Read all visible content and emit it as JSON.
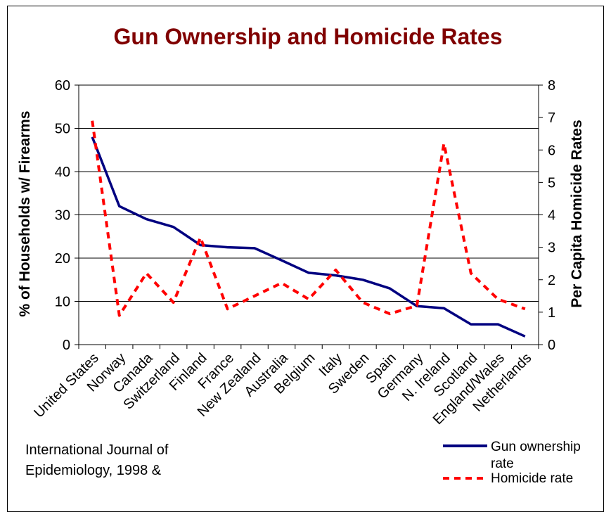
{
  "chart_data": {
    "type": "line",
    "title": "Gun Ownership and Homicide Rates",
    "categories": [
      "United States",
      "Norway",
      "Canada",
      "Switzerland",
      "Finland",
      "France",
      "New Zealand",
      "Australia",
      "Belgium",
      "Italy",
      "Sweden",
      "Spain",
      "Germany",
      "N. Ireland",
      "Scotland",
      "England/Wales",
      "Netherlands"
    ],
    "ylabel": "% of Households w/ Firearms",
    "y2label": "Per Capita Homicide Rates",
    "ylim": [
      0,
      60
    ],
    "y2lim": [
      0,
      8
    ],
    "yticks": [
      0,
      10,
      20,
      30,
      40,
      50,
      60
    ],
    "y2ticks": [
      0,
      1,
      2,
      3,
      4,
      5,
      6,
      7,
      8
    ],
    "grid": "horizontal",
    "legend_position": "bottom-right",
    "series": [
      {
        "name": "Gun ownership rate",
        "axis": "left",
        "style": "solid",
        "color": "#000080",
        "values": [
          48,
          32,
          29,
          27.2,
          23,
          22.5,
          22.3,
          19.5,
          16.6,
          16,
          15,
          13,
          8.9,
          8.4,
          4.7,
          4.7,
          1.9
        ]
      },
      {
        "name": "Homicide rate",
        "axis": "right",
        "style": "dashed",
        "color": "#ff0000",
        "values": [
          6.9,
          0.9,
          2.2,
          1.3,
          3.3,
          1.1,
          1.5,
          1.9,
          1.4,
          2.3,
          1.3,
          0.95,
          1.2,
          6.2,
          2.2,
          1.4,
          1.1
        ]
      }
    ]
  },
  "source_note": {
    "line1": "International Journal of",
    "line2": "Epidemiology, 1998 &"
  },
  "legend": {
    "gun_label_line1": "Gun ownership",
    "gun_label_line2": "rate",
    "homicide_label": "Homicide rate"
  }
}
